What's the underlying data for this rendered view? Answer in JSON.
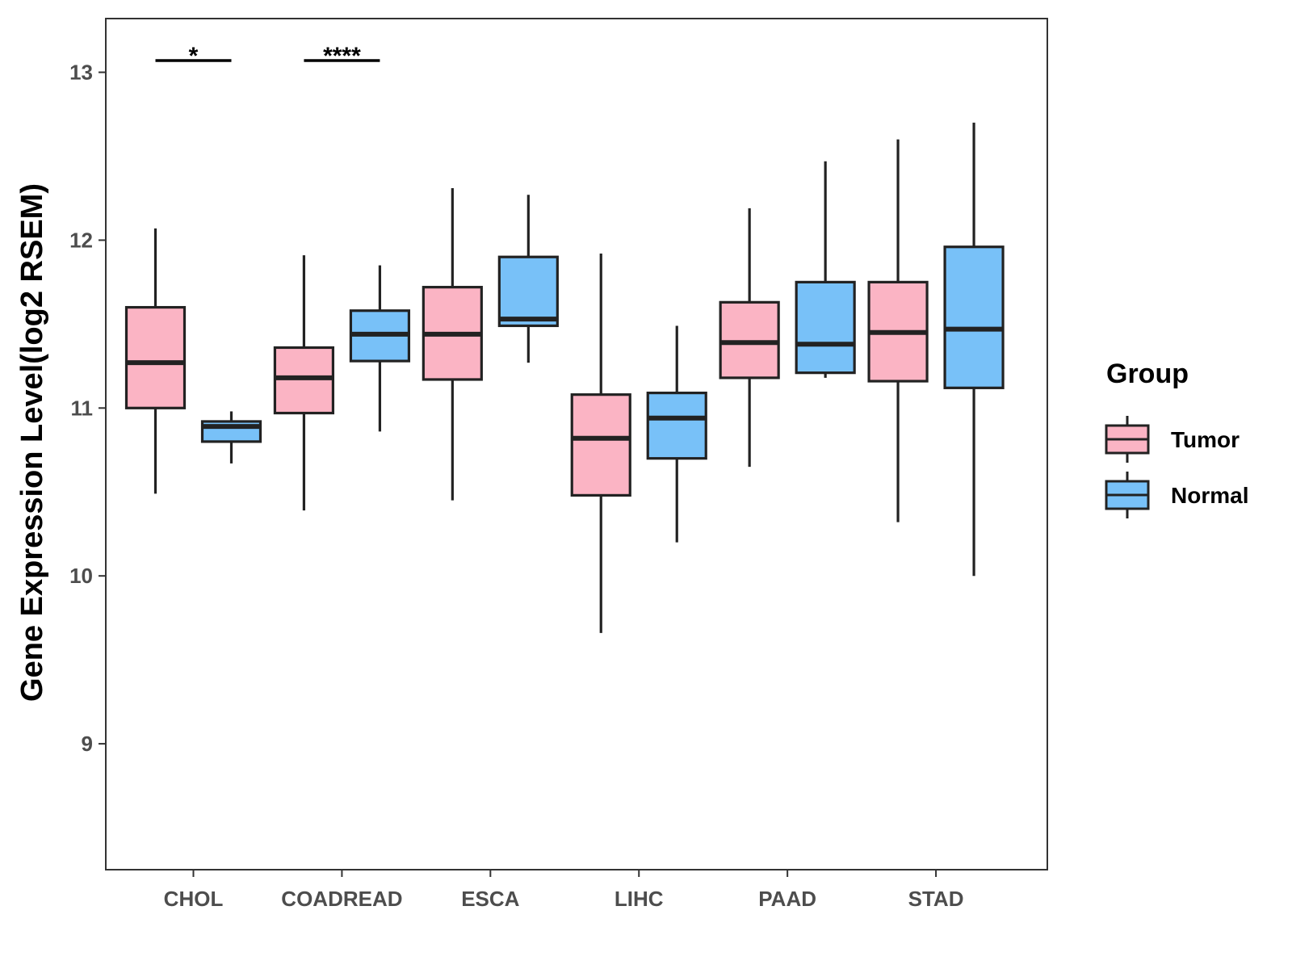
{
  "chart_data": {
    "type": "boxplot",
    "title": "",
    "xlabel": "",
    "ylabel": "Gene Expression Level(log2 RSEM)",
    "ylim": [
      8.25,
      13.32
    ],
    "yticks": [
      9,
      10,
      11,
      12,
      13
    ],
    "grid": false,
    "legend": {
      "title": "Group",
      "position": "right",
      "entries": [
        "Tumor",
        "Normal"
      ]
    },
    "colors": {
      "Tumor": "#FBB4C4",
      "Normal": "#78C1F8",
      "outline": "#222222"
    },
    "categories": [
      "CHOL",
      "COADREAD",
      "ESCA",
      "LIHC",
      "PAAD",
      "STAD"
    ],
    "series": [
      {
        "name": "Tumor",
        "boxes": [
          {
            "min": 10.49,
            "q1": 11.0,
            "median": 11.27,
            "q3": 11.6,
            "max": 12.07
          },
          {
            "min": 10.39,
            "q1": 10.97,
            "median": 11.18,
            "q3": 11.36,
            "max": 11.91
          },
          {
            "min": 10.45,
            "q1": 11.17,
            "median": 11.44,
            "q3": 11.72,
            "max": 12.31
          },
          {
            "min": 9.66,
            "q1": 10.48,
            "median": 10.82,
            "q3": 11.08,
            "max": 11.92
          },
          {
            "min": 10.65,
            "q1": 11.18,
            "median": 11.39,
            "q3": 11.63,
            "max": 12.19
          },
          {
            "min": 10.32,
            "q1": 11.16,
            "median": 11.45,
            "q3": 11.75,
            "max": 12.6
          }
        ]
      },
      {
        "name": "Normal",
        "boxes": [
          {
            "min": 10.67,
            "q1": 10.8,
            "median": 10.89,
            "q3": 10.92,
            "max": 10.98
          },
          {
            "min": 10.86,
            "q1": 11.28,
            "median": 11.44,
            "q3": 11.58,
            "max": 11.85
          },
          {
            "min": 11.27,
            "q1": 11.49,
            "median": 11.53,
            "q3": 11.9,
            "max": 12.27
          },
          {
            "min": 10.2,
            "q1": 10.7,
            "median": 10.94,
            "q3": 11.09,
            "max": 11.49
          },
          {
            "min": 11.18,
            "q1": 11.21,
            "median": 11.38,
            "q3": 11.75,
            "max": 12.47
          },
          {
            "min": 10.0,
            "q1": 11.12,
            "median": 11.47,
            "q3": 11.96,
            "max": 12.7
          }
        ]
      }
    ],
    "significance": [
      {
        "category": "CHOL",
        "label": "*",
        "y": 13.07
      },
      {
        "category": "COADREAD",
        "label": "****",
        "y": 13.07
      }
    ]
  }
}
